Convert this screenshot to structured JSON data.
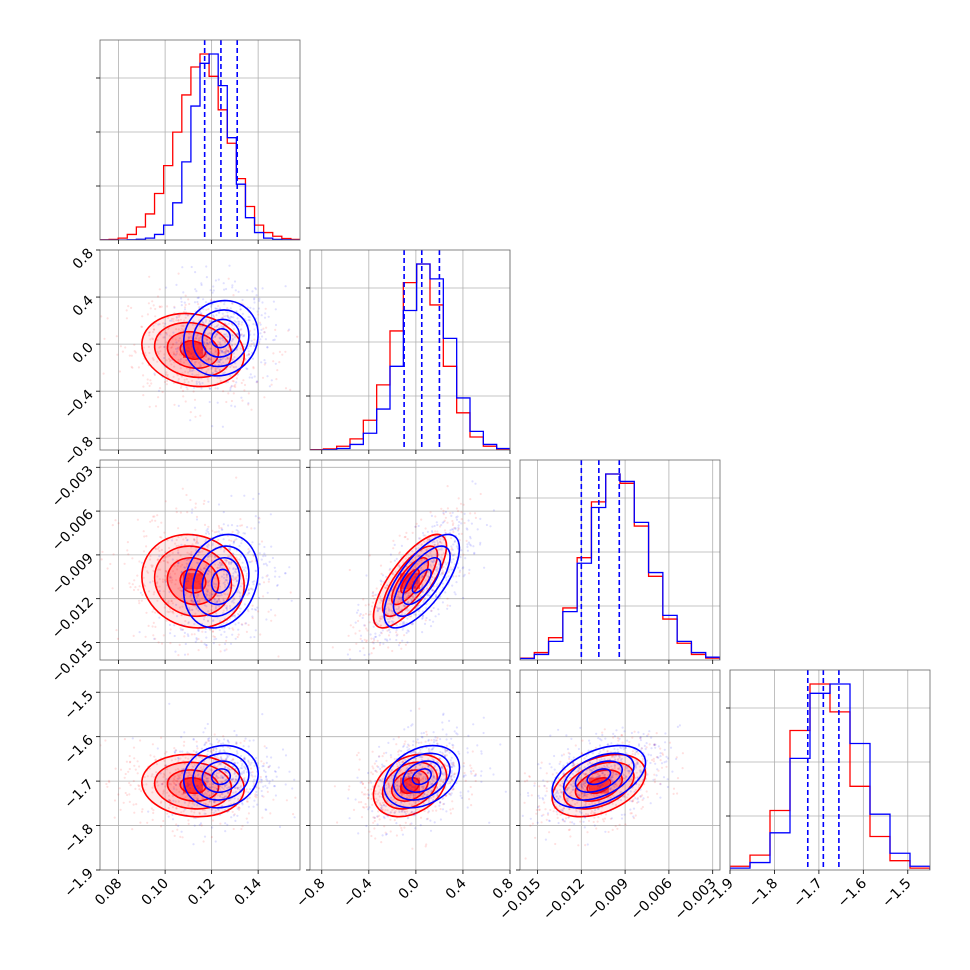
{
  "chart_data": {
    "type": "corner",
    "parameters": 4,
    "colors": {
      "series_a": "#ff0000",
      "series_b": "#0000ff"
    },
    "grid": true,
    "ticks": [
      [
        "0.08",
        "0.10",
        "0.12",
        "0.14"
      ],
      [
        "−0.8",
        "−0.4",
        "0.0",
        "0.4",
        "0.8"
      ],
      [
        "−0.015",
        "−0.012",
        "−0.009",
        "−0.006",
        "−0.003"
      ],
      [
        "−1.9",
        "−1.8",
        "−1.7",
        "−1.6",
        "−1.5"
      ]
    ],
    "tick_values": [
      [
        0.08,
        0.1,
        0.12,
        0.14
      ],
      [
        -0.8,
        -0.4,
        0.0,
        0.4,
        0.8
      ],
      [
        -0.015,
        -0.012,
        -0.009,
        -0.006,
        -0.003
      ],
      [
        -1.9,
        -1.8,
        -1.7,
        -1.6,
        -1.5
      ]
    ],
    "ranges": [
      [
        0.072,
        0.158
      ],
      [
        -0.9,
        0.8
      ],
      [
        -0.0162,
        -0.0025
      ],
      [
        -1.9,
        -1.45
      ]
    ],
    "means": {
      "series_a": [
        0.112,
        -0.05,
        -0.0108,
        -1.71
      ],
      "series_b": [
        0.124,
        0.05,
        -0.0108,
        -1.69
      ]
    },
    "sigmas": {
      "series_a": [
        0.011,
        0.155,
        0.0016,
        0.035
      ],
      "series_b": [
        0.008,
        0.16,
        0.0016,
        0.035
      ]
    },
    "correlations": {
      "series_a": [
        [
          1,
          -0.15,
          -0.1,
          -0.1
        ],
        [
          -0.15,
          1,
          0.75,
          0.3
        ],
        [
          -0.1,
          0.75,
          1,
          0.4
        ],
        [
          -0.1,
          0.3,
          0.4,
          1
        ]
      ],
      "series_b": [
        [
          1,
          0.1,
          0.2,
          0.1
        ],
        [
          0.1,
          1,
          0.7,
          0.3
        ],
        [
          0.2,
          0.7,
          1,
          0.45
        ],
        [
          0.1,
          0.3,
          0.45,
          1
        ]
      ]
    },
    "quantile_lines": {
      "color": "#0000ff",
      "values": [
        [
          0.117,
          0.124,
          0.131
        ],
        [
          -0.1,
          0.05,
          0.2
        ],
        [
          -0.012,
          -0.0108,
          -0.0094
        ],
        [
          -1.725,
          -1.69,
          -1.655
        ]
      ]
    },
    "histograms": {
      "series_a": [
        [
          0.001,
          0.003,
          0.01,
          0.03,
          0.07,
          0.14,
          0.25,
          0.4,
          0.58,
          0.78,
          0.93,
          1.0,
          0.88,
          0.7,
          0.52,
          0.33,
          0.18,
          0.08,
          0.04,
          0.02,
          0.008,
          0.003
        ],
        [
          0.002,
          0.006,
          0.02,
          0.06,
          0.16,
          0.35,
          0.64,
          0.9,
          1.0,
          0.78,
          0.45,
          0.2,
          0.07,
          0.02,
          0.005
        ],
        [
          0.01,
          0.04,
          0.12,
          0.28,
          0.55,
          0.85,
          1.0,
          0.95,
          0.72,
          0.45,
          0.22,
          0.09,
          0.03,
          0.01
        ],
        [
          0.02,
          0.08,
          0.32,
          0.75,
          1.0,
          0.85,
          0.45,
          0.18,
          0.05,
          0.01
        ]
      ],
      "series_b": [
        [
          0.0,
          0.0,
          0.0,
          0.001,
          0.004,
          0.01,
          0.03,
          0.08,
          0.2,
          0.42,
          0.72,
          0.95,
          1.0,
          0.83,
          0.55,
          0.3,
          0.12,
          0.04,
          0.01,
          0.003,
          0.001,
          0.0
        ],
        [
          0.0,
          0.002,
          0.008,
          0.03,
          0.09,
          0.22,
          0.45,
          0.75,
          1.0,
          0.92,
          0.6,
          0.28,
          0.1,
          0.03,
          0.008
        ],
        [
          0.008,
          0.03,
          0.1,
          0.26,
          0.52,
          0.82,
          1.0,
          0.96,
          0.74,
          0.47,
          0.24,
          0.1,
          0.04,
          0.015
        ],
        [
          0.01,
          0.04,
          0.2,
          0.6,
          0.95,
          1.0,
          0.68,
          0.3,
          0.09,
          0.02
        ]
      ]
    }
  }
}
